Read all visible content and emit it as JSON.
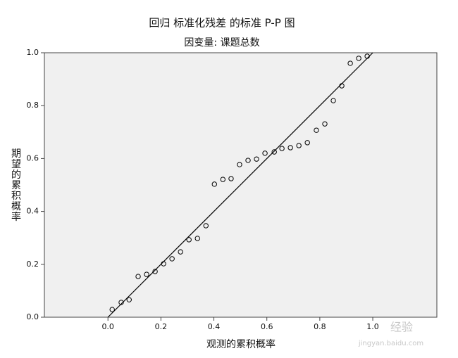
{
  "chart_data": {
    "type": "scatter",
    "title": "回归 标准化残差 的标准 P-P 图",
    "subtitle": "因变量: 课题总数",
    "x_label": "观测的累积概率",
    "y_label": "期望的累积概率",
    "x": [
      0.016,
      0.05,
      0.08,
      0.114,
      0.146,
      0.178,
      0.21,
      0.242,
      0.274,
      0.306,
      0.338,
      0.37,
      0.402,
      0.434,
      0.465,
      0.497,
      0.529,
      0.561,
      0.593,
      0.628,
      0.657,
      0.689,
      0.721,
      0.753,
      0.787,
      0.819,
      0.851,
      0.883,
      0.915,
      0.947,
      0.979
    ],
    "values": [
      0.029,
      0.056,
      0.066,
      0.154,
      0.162,
      0.173,
      0.202,
      0.221,
      0.247,
      0.293,
      0.298,
      0.346,
      0.503,
      0.521,
      0.524,
      0.577,
      0.593,
      0.598,
      0.62,
      0.625,
      0.638,
      0.641,
      0.649,
      0.66,
      0.707,
      0.731,
      0.819,
      0.875,
      0.96,
      0.979,
      0.987
    ],
    "color": "#000000",
    "xlim": [
      -0.24,
      1.242
    ],
    "ylim": [
      0,
      1
    ],
    "xticks": [
      {
        "value": 0,
        "label": "0.0"
      },
      0.2,
      0.4,
      0.6,
      0.8,
      {
        "value": 1,
        "label": "1.0"
      }
    ],
    "yticks": [
      {
        "value": 0,
        "label": "0.0"
      },
      0.2,
      0.4,
      0.6,
      0.8,
      {
        "value": 1,
        "label": "1.0"
      }
    ],
    "reference_line": true,
    "grid": false
  },
  "watermark": {
    "brand": "经验",
    "url": "jingyan.baidu.com"
  }
}
